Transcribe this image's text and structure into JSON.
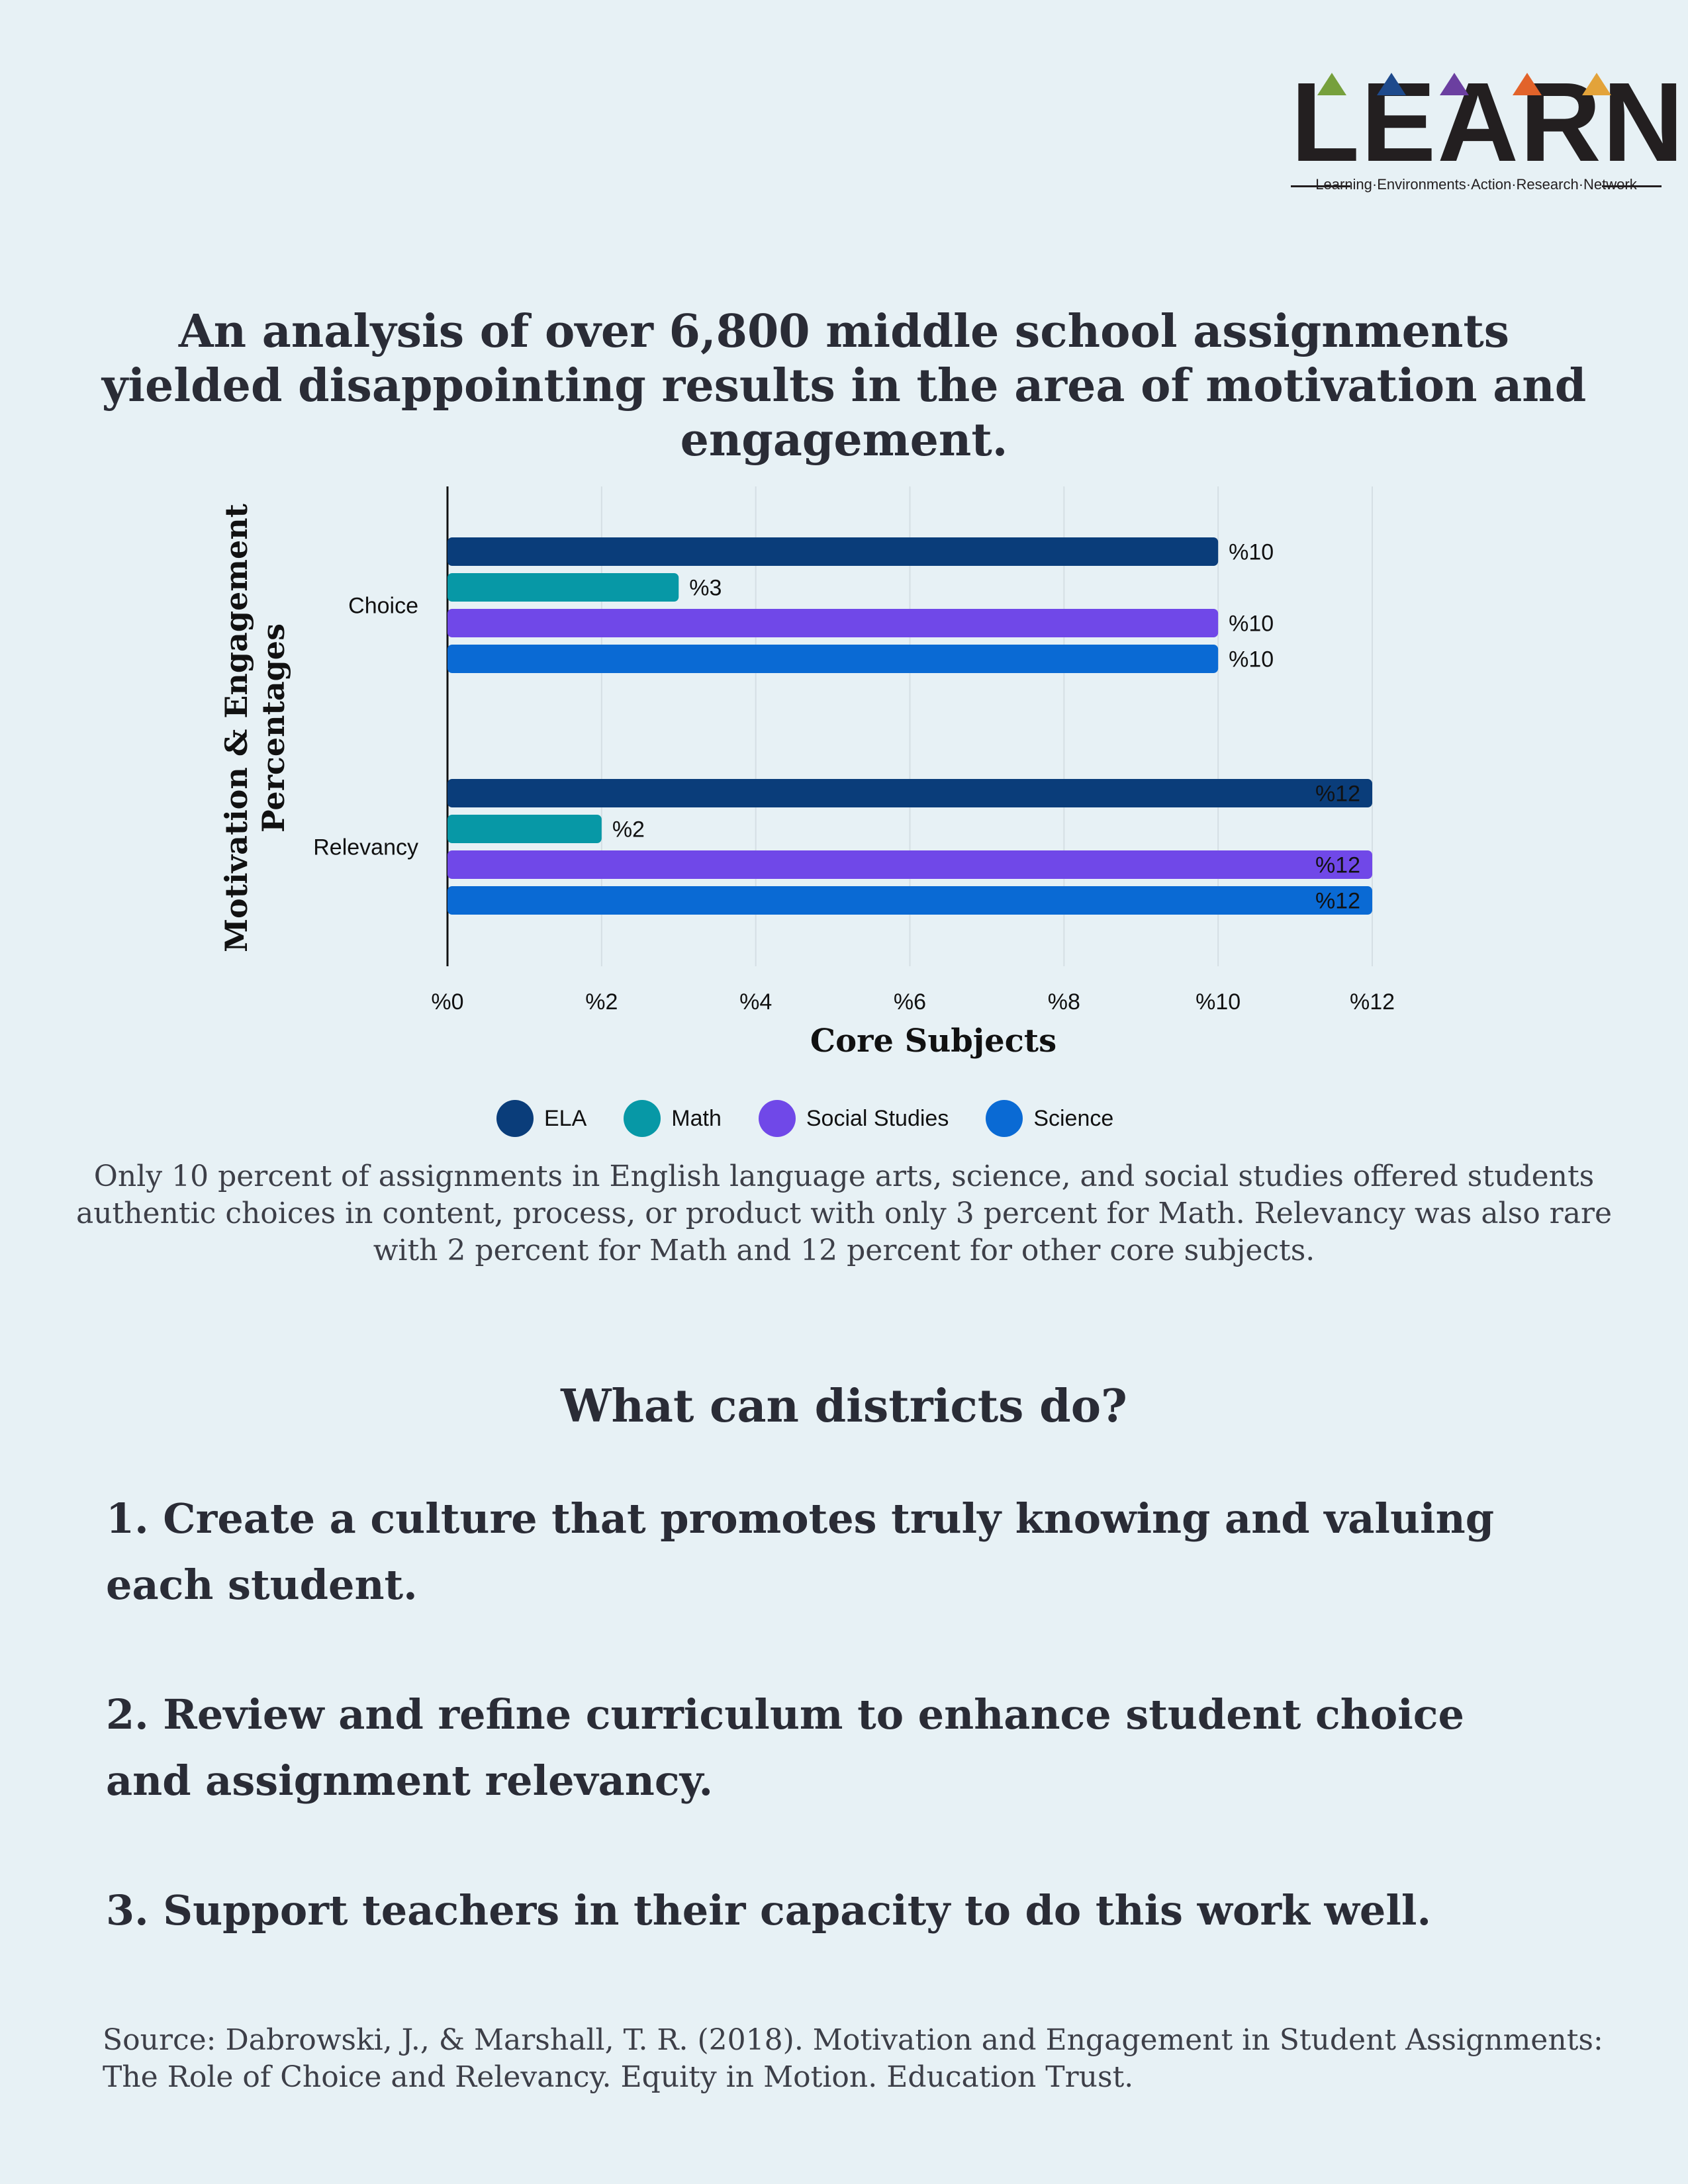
{
  "logo": {
    "wordmark": "LEARN",
    "tagline": "Learning·Environments·Action·Research·Network",
    "accent_colors": [
      "#76a03c",
      "#1e4a8c",
      "#6b3fa0",
      "#e2632a",
      "#e3a33a"
    ]
  },
  "headline": "An analysis of over 6,800 middle school assignments yielded disappointing results in the area of motivation and engagement.",
  "chart_data": {
    "type": "bar",
    "orientation": "horizontal",
    "categories": [
      "Choice",
      "Relevancy"
    ],
    "series": [
      {
        "name": "ELA",
        "color": "#0a3d7a",
        "values": [
          10,
          12
        ],
        "labels": [
          "%10",
          "%12"
        ]
      },
      {
        "name": "Math",
        "color": "#0798a6",
        "values": [
          3,
          2
        ],
        "labels": [
          "%3",
          "%2"
        ]
      },
      {
        "name": "Social Studies",
        "color": "#7048e8",
        "values": [
          10,
          12
        ],
        "labels": [
          "%10",
          "%12"
        ]
      },
      {
        "name": "Science",
        "color": "#0a6ad4",
        "values": [
          10,
          12
        ],
        "labels": [
          "%10",
          "%12"
        ]
      }
    ],
    "x_ticks": [
      0,
      2,
      4,
      6,
      8,
      10,
      12
    ],
    "x_tick_labels": [
      "%0",
      "%2",
      "%4",
      "%6",
      "%8",
      "%10",
      "%12"
    ],
    "xlim": [
      0,
      12
    ],
    "xlabel": "Core Subjects",
    "ylabel": "Motivation & Engagement Percentages",
    "grid": true,
    "legend_position": "bottom"
  },
  "paragraph": "Only 10 percent of assignments in English language arts, science, and social studies offered students authentic choices in content, process, or product with only 3 percent for Math. Relevancy was also rare with 2 percent for Math and 12 percent for other core subjects.",
  "subhead": "What can districts do?",
  "steps": [
    "1. Create a culture that promotes truly knowing and valuing each student.",
    "2. Review and refine curriculum to enhance student choice and assignment relevancy.",
    "3. Support teachers in their capacity to do this work well."
  ],
  "source": "Source: Dabrowski, J., & Marshall, T. R. (2018). Motivation and Engagement in Student Assignments: The Role of Choice and Relevancy. Equity in Motion. Education Trust."
}
